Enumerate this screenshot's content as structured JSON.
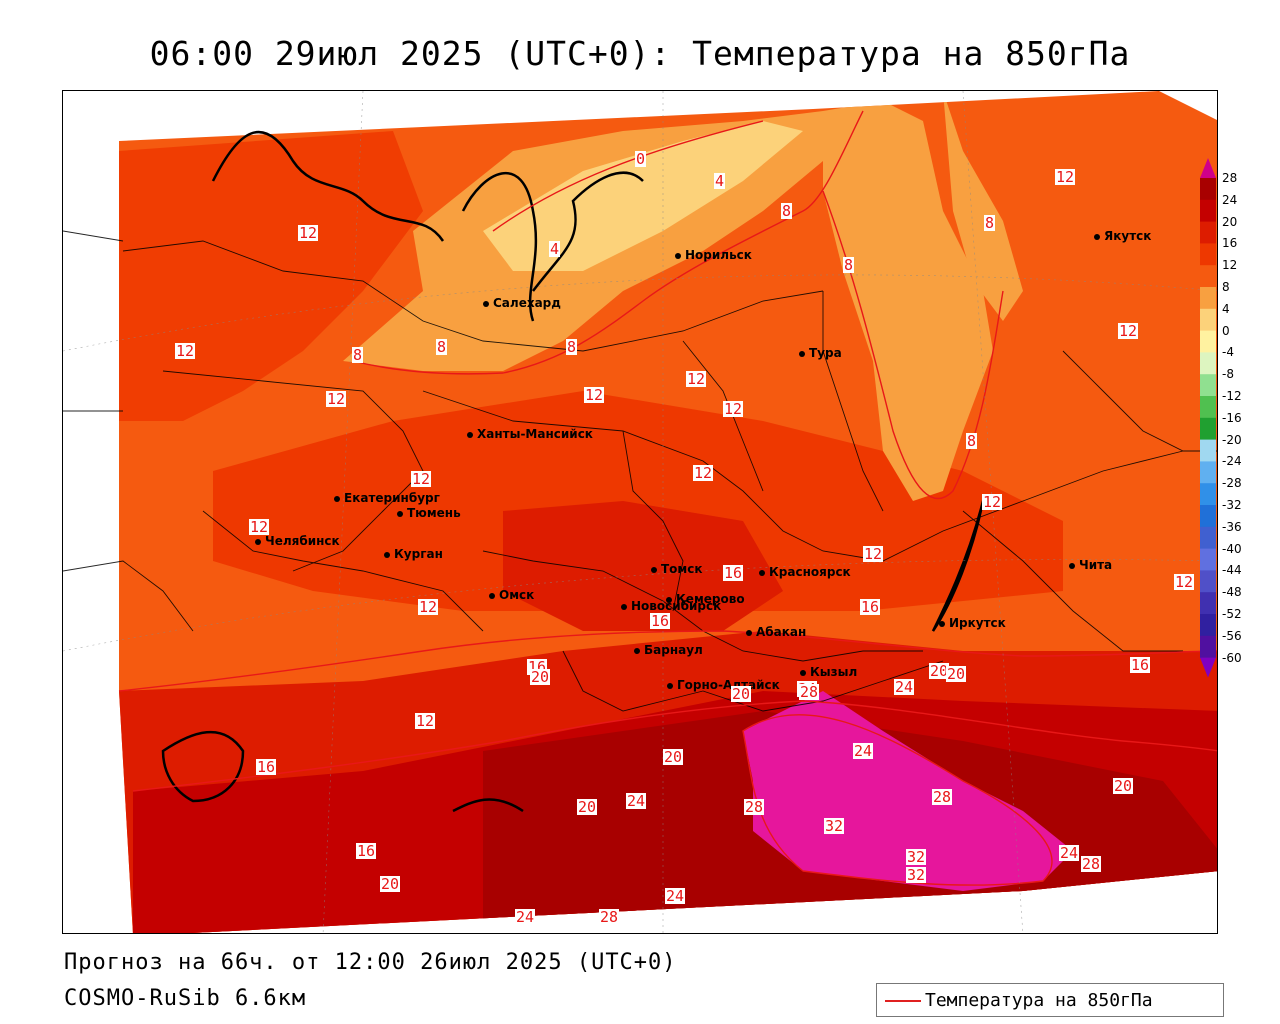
{
  "title": "06:00 29июл 2025 (UTC+0): Температура на 850гПа",
  "forecast_info": "Прогноз на 66ч. от 12:00 26июл 2025 (UTC+0)",
  "model": "COSMO-RuSib 6.6км",
  "legend_label": "Температура на 850гПа",
  "colors": {
    "deep_red": "#b40000",
    "red": "#dd1c00",
    "red_orange": "#ee3800",
    "orange": "#f55a10",
    "light_orange": "#f8a040",
    "pale_yellow": "#fcd27a",
    "magenta": "#e6169c",
    "contour": "#e81818"
  },
  "color_scale": {
    "values": [
      "28",
      "24",
      "20",
      "16",
      "12",
      "8",
      "4",
      "0",
      "-4",
      "-8",
      "-12",
      "-16",
      "-20",
      "-24",
      "-28",
      "-32",
      "-36",
      "-40",
      "-44",
      "-48",
      "-52",
      "-56",
      "-60"
    ],
    "colors": [
      "#d0008a",
      "#a80000",
      "#c40000",
      "#dd1c00",
      "#ee3800",
      "#f55a10",
      "#f8a040",
      "#fcd27a",
      "#fff2a0",
      "#ddf5c0",
      "#90e090",
      "#50c050",
      "#20a030",
      "#a0d8f0",
      "#60b0f0",
      "#3090e8",
      "#2070d8",
      "#4060d0",
      "#6070e0",
      "#5050c8",
      "#4030b0",
      "#3020a0",
      "#5010a0"
    ]
  },
  "cities": [
    {
      "name": "Салехард"
    },
    {
      "name": "Норильск"
    },
    {
      "name": "Якутск"
    },
    {
      "name": "Тура"
    },
    {
      "name": "Ханты-Мансийск"
    },
    {
      "name": "Екатеринбург"
    },
    {
      "name": "Тюмень"
    },
    {
      "name": "Челябинск"
    },
    {
      "name": "Курган"
    },
    {
      "name": "Омск"
    },
    {
      "name": "Новосибирск"
    },
    {
      "name": "Томск"
    },
    {
      "name": "Кемерово"
    },
    {
      "name": "Красноярск"
    },
    {
      "name": "Абакан"
    },
    {
      "name": "Барнаул"
    },
    {
      "name": "Горно-Алтайск"
    },
    {
      "name": "Кызыл"
    },
    {
      "name": "Иркутск"
    },
    {
      "name": "Чита"
    }
  ],
  "contour_labels": [
    "0",
    "4",
    "4",
    "8",
    "8",
    "8",
    "8",
    "8",
    "8",
    "8",
    "12",
    "12",
    "12",
    "12",
    "12",
    "12",
    "12",
    "12",
    "12",
    "12",
    "12",
    "12",
    "12",
    "12",
    "12",
    "12",
    "16",
    "16",
    "16",
    "16",
    "16",
    "16",
    "16",
    "20",
    "20",
    "20",
    "20",
    "20",
    "20",
    "20",
    "20",
    "24",
    "24",
    "24",
    "24",
    "24",
    "24",
    "24",
    "28",
    "28",
    "28",
    "28",
    "28",
    "32",
    "32",
    "32"
  ]
}
